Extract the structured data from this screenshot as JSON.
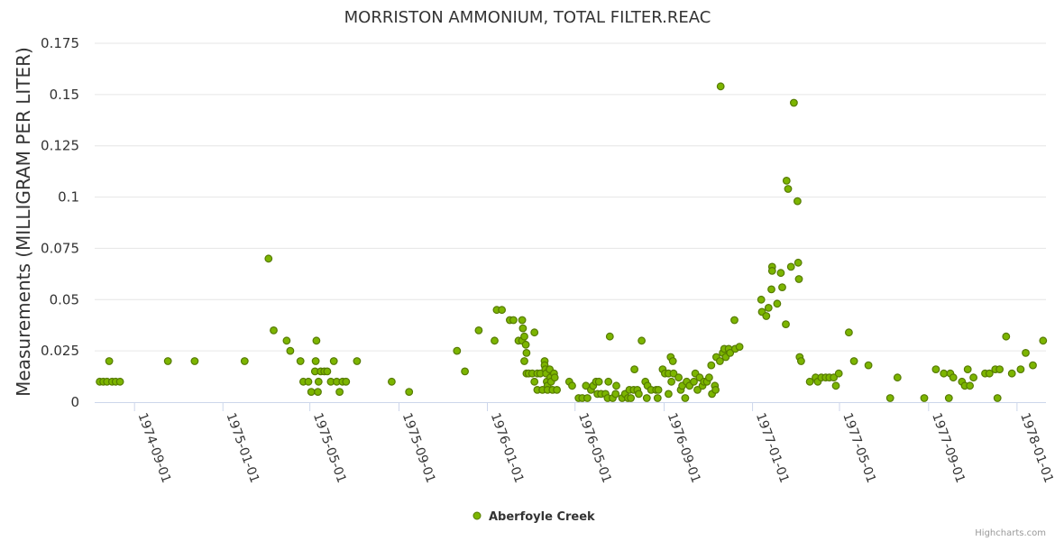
{
  "chart_data": {
    "type": "scatter",
    "title": "MORRISTON AMMONIUM, TOTAL FILTER.REAC",
    "xlabel": "",
    "ylabel": "Measurements (MILLIGRAM PER LITER)",
    "ylim": [
      0,
      0.175
    ],
    "yticks": [
      0,
      0.025,
      0.05,
      0.075,
      0.1,
      0.125,
      0.15,
      0.175
    ],
    "ytick_labels": [
      "0",
      "0.025",
      "0.05",
      "0.075",
      "0.1",
      "0.125",
      "0.15",
      "0.175"
    ],
    "xlim": [
      "1974-07-08",
      "1978-02-10"
    ],
    "xticks": [
      "1974-09-01",
      "1975-01-01",
      "1975-05-01",
      "1975-09-01",
      "1976-01-01",
      "1976-05-01",
      "1976-09-01",
      "1977-01-01",
      "1977-05-01",
      "1977-09-01",
      "1978-01-01"
    ],
    "marker_color": "#7cb500",
    "marker_edge_color": "#557a00",
    "legend": {
      "position": "bottom-center",
      "entries": [
        "Aberfoyle Creek"
      ]
    },
    "credit": "Highcharts.com",
    "series": [
      {
        "name": "Aberfoyle Creek",
        "points": [
          [
            "1974-07-15",
            0.01
          ],
          [
            "1974-07-20",
            0.01
          ],
          [
            "1974-07-25",
            0.01
          ],
          [
            "1974-07-28",
            0.02
          ],
          [
            "1974-08-01",
            0.01
          ],
          [
            "1974-08-06",
            0.01
          ],
          [
            "1974-08-12",
            0.01
          ],
          [
            "1974-10-17",
            0.02
          ],
          [
            "1974-11-23",
            0.02
          ],
          [
            "1975-01-31",
            0.02
          ],
          [
            "1975-03-05",
            0.07
          ],
          [
            "1975-03-12",
            0.035
          ],
          [
            "1975-03-30",
            0.03
          ],
          [
            "1975-04-04",
            0.025
          ],
          [
            "1975-04-18",
            0.02
          ],
          [
            "1975-04-22",
            0.01
          ],
          [
            "1975-04-29",
            0.01
          ],
          [
            "1975-05-03",
            0.005
          ],
          [
            "1975-05-08",
            0.015
          ],
          [
            "1975-05-09",
            0.02
          ],
          [
            "1975-05-10",
            0.03
          ],
          [
            "1975-05-12",
            0.005
          ],
          [
            "1975-05-13",
            0.01
          ],
          [
            "1975-05-16",
            0.015
          ],
          [
            "1975-05-21",
            0.015
          ],
          [
            "1975-05-25",
            0.015
          ],
          [
            "1975-05-30",
            0.01
          ],
          [
            "1975-06-03",
            0.02
          ],
          [
            "1975-06-07",
            0.01
          ],
          [
            "1975-06-11",
            0.005
          ],
          [
            "1975-06-15",
            0.01
          ],
          [
            "1975-06-20",
            0.01
          ],
          [
            "1975-07-05",
            0.02
          ],
          [
            "1975-08-22",
            0.01
          ],
          [
            "1975-09-15",
            0.005
          ],
          [
            "1975-11-20",
            0.025
          ],
          [
            "1975-12-01",
            0.015
          ],
          [
            "1975-12-20",
            0.035
          ],
          [
            "1976-01-11",
            0.03
          ],
          [
            "1976-01-14",
            0.045
          ],
          [
            "1976-01-21",
            0.045
          ],
          [
            "1976-02-01",
            0.04
          ],
          [
            "1976-02-06",
            0.04
          ],
          [
            "1976-02-13",
            0.03
          ],
          [
            "1976-02-18",
            0.03
          ],
          [
            "1976-02-18",
            0.04
          ],
          [
            "1976-02-19",
            0.036
          ],
          [
            "1976-02-21",
            0.032
          ],
          [
            "1976-02-21",
            0.02
          ],
          [
            "1976-02-23",
            0.028
          ],
          [
            "1976-02-24",
            0.024
          ],
          [
            "1976-02-24",
            0.014
          ],
          [
            "1976-02-27",
            0.014
          ],
          [
            "1976-03-03",
            0.014
          ],
          [
            "1976-03-06",
            0.034
          ],
          [
            "1976-03-06",
            0.01
          ],
          [
            "1976-03-10",
            0.006
          ],
          [
            "1976-03-10",
            0.014
          ],
          [
            "1976-03-14",
            0.014
          ],
          [
            "1976-03-17",
            0.006
          ],
          [
            "1976-03-20",
            0.02
          ],
          [
            "1976-03-20",
            0.018
          ],
          [
            "1976-03-21",
            0.016
          ],
          [
            "1976-03-22",
            0.014
          ],
          [
            "1976-03-23",
            0.01
          ],
          [
            "1976-03-24",
            0.008
          ],
          [
            "1976-03-24",
            0.006
          ],
          [
            "1976-03-27",
            0.016
          ],
          [
            "1976-03-28",
            0.012
          ],
          [
            "1976-03-29",
            0.01
          ],
          [
            "1976-03-31",
            0.006
          ],
          [
            "1976-04-02",
            0.014
          ],
          [
            "1976-04-03",
            0.012
          ],
          [
            "1976-04-06",
            0.006
          ],
          [
            "1976-04-23",
            0.01
          ],
          [
            "1976-04-27",
            0.008
          ],
          [
            "1976-05-06",
            0.002
          ],
          [
            "1976-05-11",
            0.002
          ],
          [
            "1976-05-16",
            0.008
          ],
          [
            "1976-05-18",
            0.002
          ],
          [
            "1976-05-23",
            0.006
          ],
          [
            "1976-05-26",
            0.008
          ],
          [
            "1976-05-30",
            0.01
          ],
          [
            "1976-06-01",
            0.004
          ],
          [
            "1976-06-03",
            0.01
          ],
          [
            "1976-06-06",
            0.004
          ],
          [
            "1976-06-12",
            0.004
          ],
          [
            "1976-06-15",
            0.002
          ],
          [
            "1976-06-16",
            0.01
          ],
          [
            "1976-06-18",
            0.032
          ],
          [
            "1976-06-22",
            0.002
          ],
          [
            "1976-06-26",
            0.004
          ],
          [
            "1976-06-27",
            0.008
          ],
          [
            "1976-07-05",
            0.002
          ],
          [
            "1976-07-09",
            0.004
          ],
          [
            "1976-07-13",
            0.002
          ],
          [
            "1976-07-15",
            0.006
          ],
          [
            "1976-07-17",
            0.002
          ],
          [
            "1976-07-21",
            0.006
          ],
          [
            "1976-07-22",
            0.016
          ],
          [
            "1976-07-26",
            0.006
          ],
          [
            "1976-07-28",
            0.004
          ],
          [
            "1976-08-01",
            0.03
          ],
          [
            "1976-08-06",
            0.01
          ],
          [
            "1976-08-08",
            0.002
          ],
          [
            "1976-08-09",
            0.008
          ],
          [
            "1976-08-14",
            0.006
          ],
          [
            "1976-08-21",
            0.006
          ],
          [
            "1976-08-23",
            0.002
          ],
          [
            "1976-08-24",
            0.006
          ],
          [
            "1976-08-30",
            0.016
          ],
          [
            "1976-09-02",
            0.014
          ],
          [
            "1976-09-07",
            0.014
          ],
          [
            "1976-09-07",
            0.004
          ],
          [
            "1976-09-10",
            0.022
          ],
          [
            "1976-09-11",
            0.01
          ],
          [
            "1976-09-13",
            0.02
          ],
          [
            "1976-09-14",
            0.014
          ],
          [
            "1976-09-21",
            0.012
          ],
          [
            "1976-09-24",
            0.006
          ],
          [
            "1976-09-26",
            0.008
          ],
          [
            "1976-09-30",
            0.002
          ],
          [
            "1976-10-02",
            0.01
          ],
          [
            "1976-10-06",
            0.008
          ],
          [
            "1976-10-12",
            0.01
          ],
          [
            "1976-10-14",
            0.014
          ],
          [
            "1976-10-17",
            0.006
          ],
          [
            "1976-10-20",
            0.012
          ],
          [
            "1976-10-24",
            0.008
          ],
          [
            "1976-10-26",
            0.01
          ],
          [
            "1976-10-30",
            0.01
          ],
          [
            "1976-11-02",
            0.012
          ],
          [
            "1976-11-05",
            0.018
          ],
          [
            "1976-11-06",
            0.004
          ],
          [
            "1976-11-10",
            0.008
          ],
          [
            "1976-11-11",
            0.006
          ],
          [
            "1976-11-12",
            0.022
          ],
          [
            "1976-11-17",
            0.02
          ],
          [
            "1976-11-18",
            0.154
          ],
          [
            "1976-11-21",
            0.024
          ],
          [
            "1976-11-23",
            0.026
          ],
          [
            "1976-11-25",
            0.022
          ],
          [
            "1976-11-29",
            0.026
          ],
          [
            "1976-12-01",
            0.024
          ],
          [
            "1976-12-07",
            0.04
          ],
          [
            "1976-12-08",
            0.026
          ],
          [
            "1976-12-14",
            0.027
          ],
          [
            "1977-01-13",
            0.05
          ],
          [
            "1977-01-14",
            0.044
          ],
          [
            "1977-01-20",
            0.042
          ],
          [
            "1977-01-23",
            0.046
          ],
          [
            "1977-01-27",
            0.055
          ],
          [
            "1977-01-28",
            0.066
          ],
          [
            "1977-01-28",
            0.064
          ],
          [
            "1977-02-04",
            0.048
          ],
          [
            "1977-02-09",
            0.063
          ],
          [
            "1977-02-11",
            0.056
          ],
          [
            "1977-02-16",
            0.038
          ],
          [
            "1977-02-17",
            0.108
          ],
          [
            "1977-02-19",
            0.104
          ],
          [
            "1977-02-23",
            0.066
          ],
          [
            "1977-02-27",
            0.146
          ],
          [
            "1977-03-04",
            0.098
          ],
          [
            "1977-03-05",
            0.068
          ],
          [
            "1977-03-06",
            0.06
          ],
          [
            "1977-03-07",
            0.022
          ],
          [
            "1977-03-09",
            0.02
          ],
          [
            "1977-03-21",
            0.01
          ],
          [
            "1977-03-29",
            0.012
          ],
          [
            "1977-04-01",
            0.01
          ],
          [
            "1977-04-06",
            0.012
          ],
          [
            "1977-04-12",
            0.012
          ],
          [
            "1977-04-17",
            0.012
          ],
          [
            "1977-04-23",
            0.012
          ],
          [
            "1977-04-26",
            0.008
          ],
          [
            "1977-04-30",
            0.014
          ],
          [
            "1977-05-14",
            0.034
          ],
          [
            "1977-05-21",
            0.02
          ],
          [
            "1977-06-10",
            0.018
          ],
          [
            "1977-07-10",
            0.002
          ],
          [
            "1977-07-20",
            0.012
          ],
          [
            "1977-08-26",
            0.002
          ],
          [
            "1977-09-11",
            0.016
          ],
          [
            "1977-09-22",
            0.014
          ],
          [
            "1977-09-29",
            0.002
          ],
          [
            "1977-10-01",
            0.014
          ],
          [
            "1977-10-05",
            0.012
          ],
          [
            "1977-10-17",
            0.01
          ],
          [
            "1977-10-21",
            0.008
          ],
          [
            "1977-10-25",
            0.016
          ],
          [
            "1977-10-28",
            0.008
          ],
          [
            "1977-11-02",
            0.012
          ],
          [
            "1977-11-18",
            0.014
          ],
          [
            "1977-11-24",
            0.014
          ],
          [
            "1977-12-02",
            0.016
          ],
          [
            "1977-12-05",
            0.002
          ],
          [
            "1977-12-08",
            0.016
          ],
          [
            "1977-12-17",
            0.032
          ],
          [
            "1977-12-25",
            0.014
          ],
          [
            "1978-01-06",
            0.016
          ],
          [
            "1978-01-13",
            0.024
          ],
          [
            "1978-01-23",
            0.018
          ],
          [
            "1978-02-06",
            0.03
          ]
        ]
      }
    ]
  }
}
